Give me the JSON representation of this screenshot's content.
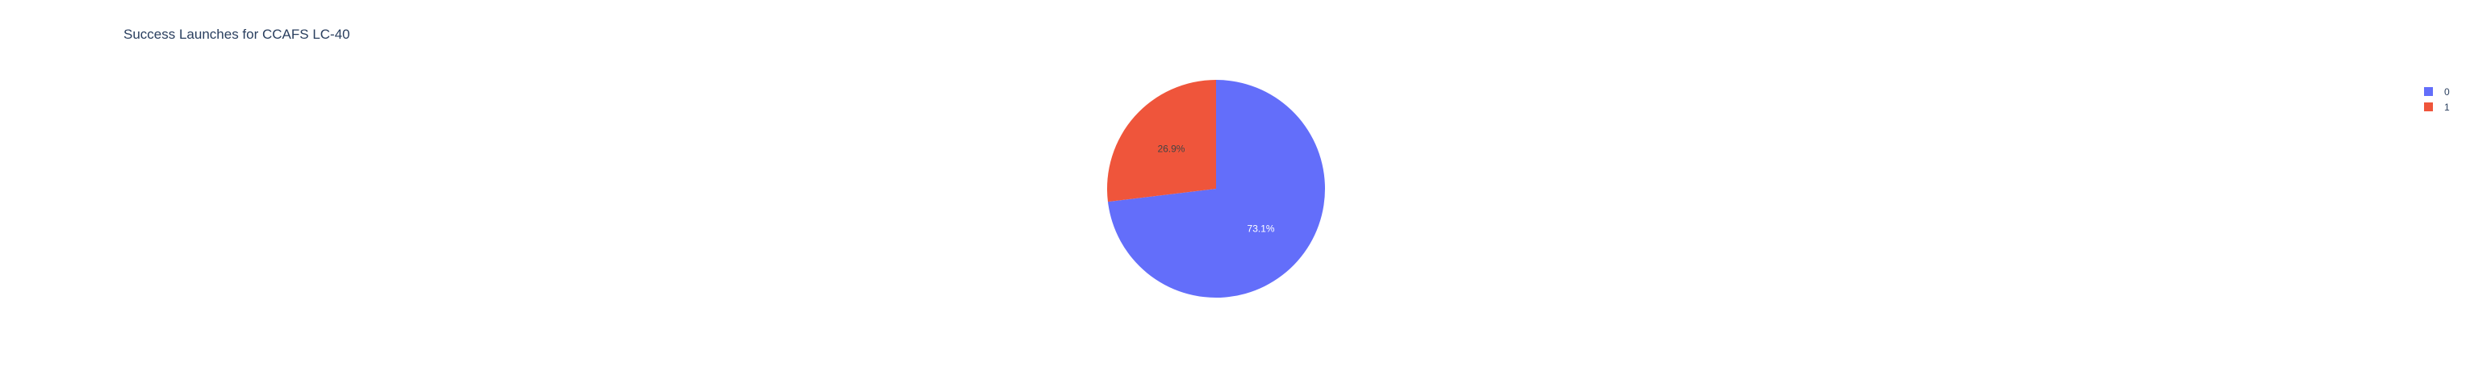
{
  "chart_data": {
    "type": "pie",
    "title": "Success Launches for CCAFS LC-40",
    "labels": [
      "0",
      "1"
    ],
    "values": [
      73.1,
      26.9
    ],
    "value_labels": [
      "73.1%",
      "26.9%"
    ],
    "colors": [
      "#636efa",
      "#ef553b"
    ],
    "label_colors": [
      "#ffffff",
      "#444444"
    ],
    "direction": "clockwise",
    "rotation_degrees": 0,
    "legend": {
      "position": "top-right",
      "entries": [
        "0",
        "1"
      ]
    }
  }
}
